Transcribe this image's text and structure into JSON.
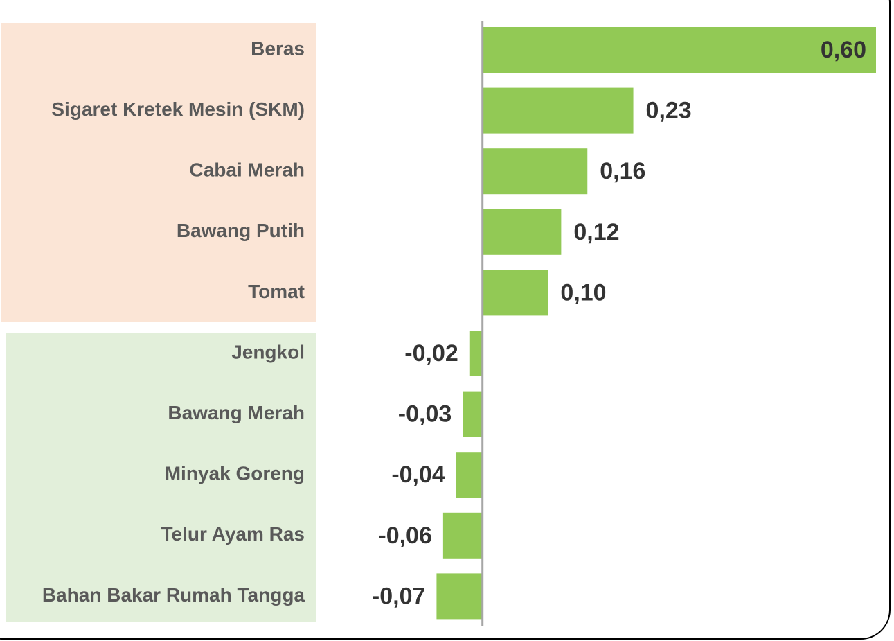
{
  "chart_data": {
    "type": "barh",
    "categories": [
      "Beras",
      "Sigaret Kretek Mesin (SKM)",
      "Cabai Merah",
      "Bawang Putih",
      "Tomat",
      "Jengkol",
      "Bawang Merah",
      "Minyak Goreng",
      "Telur Ayam Ras",
      "Bahan Bakar Rumah Tangga"
    ],
    "values": [
      0.6,
      0.23,
      0.16,
      0.12,
      0.1,
      -0.02,
      -0.03,
      -0.04,
      -0.06,
      -0.07
    ],
    "value_labels": [
      "0,60",
      "0,23",
      "0,16",
      "0,12",
      "0,10",
      "-0,02",
      "-0,03",
      "-0,04",
      "-0,06",
      "-0,07"
    ],
    "color": "#92c955",
    "xlim": [
      -0.1,
      0.6
    ]
  }
}
